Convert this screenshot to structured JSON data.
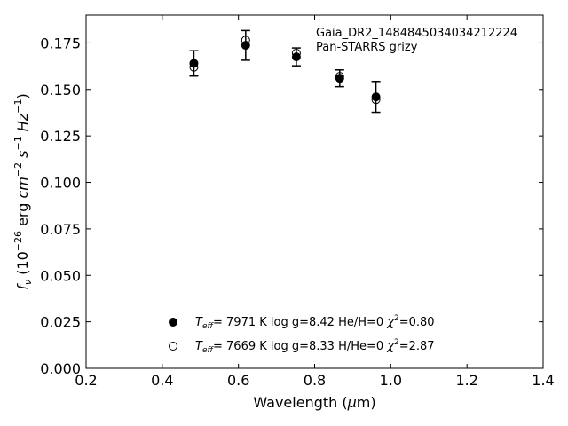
{
  "chart_data": {
    "type": "scatter",
    "title": "",
    "annotation": [
      "Gaia_DR2_1484845034034212224",
      "Pan-STARRS grizy"
    ],
    "xlabel": "Wavelength (μm)",
    "ylabel": "f_ν (10^-26 erg cm^-2 s^-1 Hz^-1)",
    "xlim": [
      0.2,
      1.4
    ],
    "ylim": [
      0.0,
      0.19
    ],
    "xticks": [
      "0.2",
      "0.4",
      "0.6",
      "0.8",
      "1.0",
      "1.2",
      "1.4"
    ],
    "yticks": [
      "0.000",
      "0.025",
      "0.050",
      "0.075",
      "0.100",
      "0.125",
      "0.150",
      "0.175"
    ],
    "grid": false,
    "legend_position": "bottom-center",
    "series": [
      {
        "marker": "filled-circle",
        "color": "#000000",
        "legend_label": "T_eff=  7971 K  log g=8.42  He/H=0  χ²=0.80",
        "x": [
          0.483,
          0.619,
          0.752,
          0.866,
          0.961
        ],
        "y": [
          0.164,
          0.1737,
          0.1675,
          0.156,
          0.146
        ],
        "yerr": [
          0.0068,
          0.008,
          0.0048,
          0.0045,
          0.0083
        ]
      },
      {
        "marker": "open-circle",
        "color": "#000000",
        "legend_label": "T_eff=  7669 K  log g=8.33  H/He=0  χ²=2.87",
        "x": [
          0.483,
          0.619,
          0.752,
          0.866,
          0.961
        ],
        "y": [
          0.162,
          0.1765,
          0.1695,
          0.157,
          0.1445
        ]
      }
    ]
  }
}
